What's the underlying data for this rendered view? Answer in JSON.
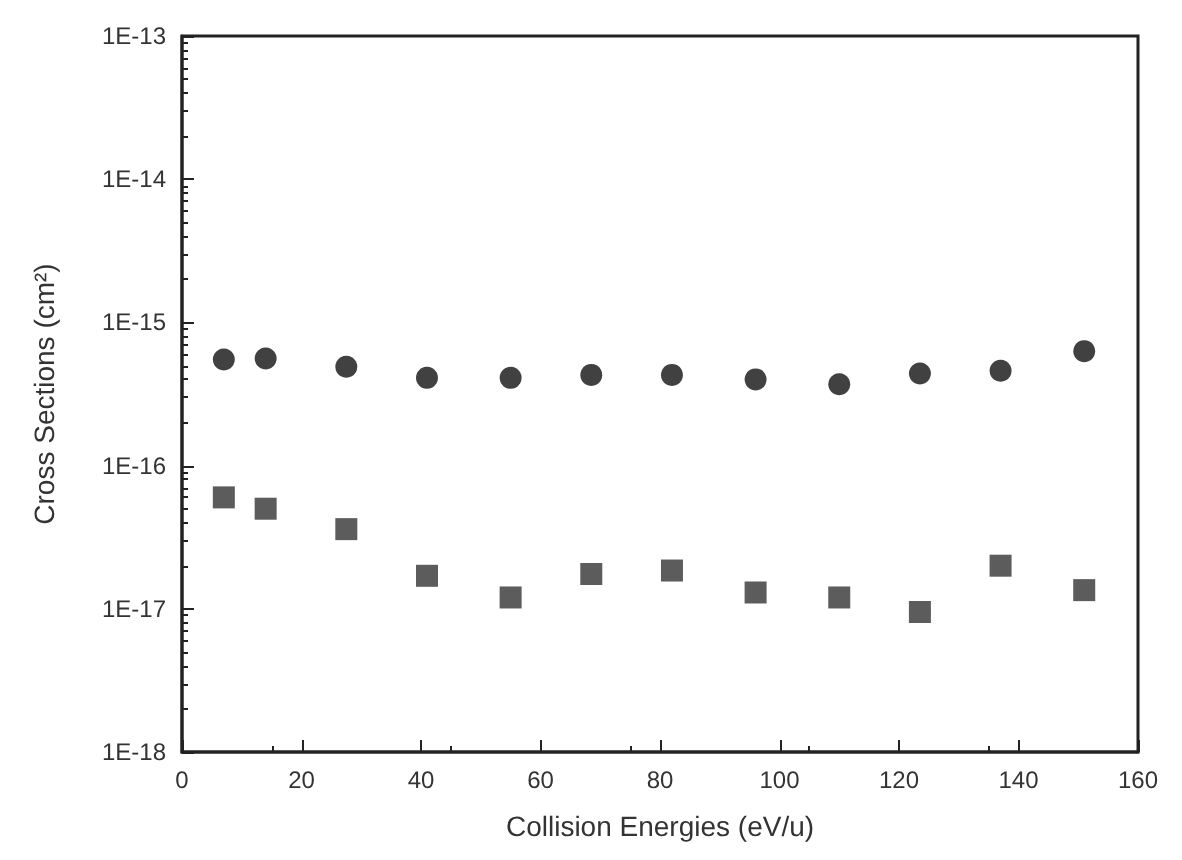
{
  "chart_data": {
    "type": "scatter",
    "xlabel": "Collision Energies (eV/u)",
    "ylabel": "Cross Sections (cm²)",
    "x": [
      7,
      14,
      27.5,
      41,
      55,
      68.5,
      82,
      96,
      110,
      123.5,
      137,
      151
    ],
    "series": [
      {
        "color": "#111111",
        "marker": "circle",
        "values": [
          5.5e-16,
          5.6e-16,
          4.9e-16,
          4.1e-16,
          4.1e-16,
          4.3e-16,
          4.3e-16,
          4e-16,
          3.7e-16,
          4.4e-16,
          4.6e-16,
          6.3e-16
        ]
      },
      {
        "color": "#333333",
        "marker": "square",
        "values": [
          6e-17,
          5e-17,
          3.6e-17,
          1.7e-17,
          1.2e-17,
          1.75e-17,
          1.85e-17,
          1.3e-17,
          1.2e-17,
          9.5e-18,
          2e-17,
          1.35e-17
        ]
      }
    ],
    "log": "y",
    "xlim": [
      0,
      160
    ],
    "xticks": [
      0,
      20,
      40,
      60,
      80,
      100,
      120,
      140,
      160
    ],
    "ylim": [
      1e-18,
      1e-13
    ],
    "yticks": [
      {
        "value": 1e-18,
        "label": "1E-18"
      },
      {
        "value": 1e-17,
        "label": "1E-17"
      },
      {
        "value": 1e-16,
        "label": "1E-16"
      },
      {
        "value": 1e-15,
        "label": "1E-15"
      },
      {
        "value": 1e-14,
        "label": "1E-14"
      },
      {
        "value": 1e-13,
        "label": "1E-13"
      }
    ],
    "grid": false
  }
}
